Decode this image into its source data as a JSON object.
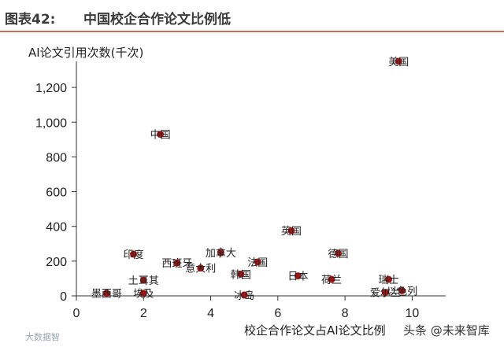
{
  "figure": {
    "title_prefix": "图表42:",
    "title_main": "中国校企合作论文比例低",
    "watermark": "头条 @未来智库",
    "watermark_faint": "大数据智"
  },
  "colors": {
    "accent_rule": "#c0392b",
    "point": "#a31515",
    "axis": "#333333"
  },
  "chart_data": {
    "type": "scatter",
    "title": "中国校企合作论文比例低",
    "xlabel": "校企合作论文占AI论文比例",
    "ylabel": "AI论文引用次数(千次)",
    "xlim": [
      0,
      11
    ],
    "ylim": [
      0,
      1350
    ],
    "xticks": [
      "0",
      "2",
      "4",
      "6",
      "8",
      "10"
    ],
    "yticks": [
      "0",
      "200",
      "400",
      "600",
      "800",
      "1,000",
      "1,200"
    ],
    "grid": false,
    "points": [
      {
        "label": "美国",
        "x": 9.6,
        "y": 1350
      },
      {
        "label": "中国",
        "x": 2.5,
        "y": 930
      },
      {
        "label": "英国",
        "x": 6.4,
        "y": 375
      },
      {
        "label": "德国",
        "x": 7.8,
        "y": 245
      },
      {
        "label": "印度",
        "x": 1.7,
        "y": 240
      },
      {
        "label": "加拿大",
        "x": 4.3,
        "y": 250
      },
      {
        "label": "西班牙",
        "x": 3.0,
        "y": 190
      },
      {
        "label": "意大利",
        "x": 3.7,
        "y": 160
      },
      {
        "label": "法国",
        "x": 5.4,
        "y": 195
      },
      {
        "label": "韩国",
        "x": 4.9,
        "y": 125
      },
      {
        "label": "日本",
        "x": 6.6,
        "y": 115
      },
      {
        "label": "荷兰",
        "x": 7.6,
        "y": 95
      },
      {
        "label": "瑞士",
        "x": 9.3,
        "y": 95
      },
      {
        "label": "土耳其",
        "x": 2.0,
        "y": 90
      },
      {
        "label": "墨西哥",
        "x": 0.9,
        "y": 15
      },
      {
        "label": "埃及",
        "x": 2.0,
        "y": 15
      },
      {
        "label": "冰岛",
        "x": 5.0,
        "y": 5
      },
      {
        "label": "爱尔兰",
        "x": 9.2,
        "y": 20
      },
      {
        "label": "以色列",
        "x": 9.7,
        "y": 30
      }
    ]
  }
}
